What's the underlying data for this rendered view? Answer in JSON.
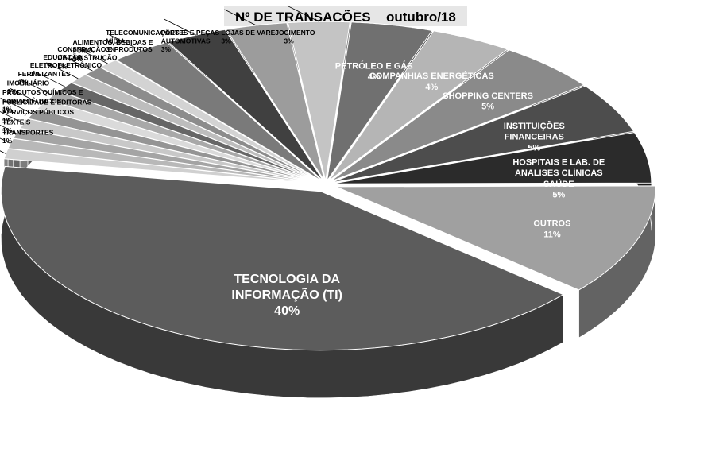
{
  "chart_data": {
    "type": "pie",
    "title": "Nº DE TRANSAÇÕES",
    "subtitle": "outubro/18",
    "slices": [
      {
        "label": "TECNOLOGIA DA INFORMAÇÃO (TI)",
        "value": 40,
        "pct_label": "40%",
        "color": "#5c5c5c"
      },
      {
        "label": "OUTROS",
        "value": 11,
        "pct_label": "11%",
        "color": "#a0a0a0"
      },
      {
        "label": "HOSPITAIS E LAB. DE ANALISES CLÍNICAS SAÚDE",
        "value": 5,
        "pct_label": "5%",
        "color": "#2b2b2b"
      },
      {
        "label": "INSTITUIÇÕES FINANCEIRAS",
        "value": 5,
        "pct_label": "5%",
        "color": "#4d4d4d"
      },
      {
        "label": "SHOPPING CENTERS",
        "value": 5,
        "pct_label": "5%",
        "color": "#8a8a8a"
      },
      {
        "label": "COMPANHIAS ENERGÉTICAS",
        "value": 4,
        "pct_label": "4%",
        "color": "#b5b5b5"
      },
      {
        "label": "PETRÓLEO E GÁS",
        "value": 4,
        "pct_label": "4%",
        "color": "#707070"
      },
      {
        "label": "CIMENTO",
        "value": 3,
        "pct_label": "3%",
        "color": "#c4c4c4"
      },
      {
        "label": "LOJAS DE VAREJO",
        "value": 3,
        "pct_label": "3%",
        "color": "#9c9c9c"
      },
      {
        "label": "PARTES E PEÇAS AUTOMOTIVAS",
        "value": 3,
        "pct_label": "3%",
        "color": "#404040"
      },
      {
        "label": "TELECOMUNICAÇÕES E MÍDIA",
        "value": 3,
        "pct_label": "3%",
        "color": "#7a7a7a"
      },
      {
        "label": "ALIMENTOS, BEBIDAS E FUMO",
        "value": 1,
        "pct_label": "1%",
        "color": "#d3d3d3"
      },
      {
        "label": "CONSTRUÇÃO E PRODUTOS DE CONSTRUÇÃO",
        "value": 1,
        "pct_label": "1%",
        "color": "#8c8c8c"
      },
      {
        "label": "EDUCAÇÃO",
        "value": 1,
        "pct_label": "1%",
        "color": "#bdbdbd"
      },
      {
        "label": "ELETROELETRÔNICO",
        "value": 1,
        "pct_label": "1%",
        "color": "#666666"
      },
      {
        "label": "FERTILIZANTES",
        "value": 1,
        "pct_label": "1%",
        "color": "#a8a8a8"
      },
      {
        "label": "IMOBILIÁRIO",
        "value": 1,
        "pct_label": "1%",
        "color": "#dadada"
      },
      {
        "label": "PRODUTOS QUÍMICOS E FARMACÊUTICOS",
        "value": 1,
        "pct_label": "1%",
        "color": "#949494"
      },
      {
        "label": "PUBLICIDADE E EDITORAS",
        "value": 1,
        "pct_label": "1%",
        "color": "#c8c8c8"
      },
      {
        "label": "SERVIÇOS PÚBLICOS",
        "value": 1,
        "pct_label": "1%",
        "color": "#a4a4a4"
      },
      {
        "label": "TÊXTEIS",
        "value": 1,
        "pct_label": "1%",
        "color": "#b8b8b8"
      },
      {
        "label": "TRANSPORTES",
        "value": 1,
        "pct_label": "1%",
        "color": "#d0d0d0"
      }
    ],
    "legend": "none",
    "style": "3d-exploded"
  }
}
